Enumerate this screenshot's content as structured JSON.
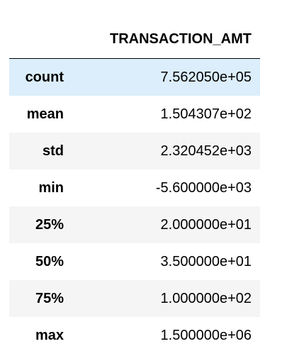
{
  "table": {
    "columns": [
      "",
      "TRANSACTION_AMT"
    ],
    "rows": [
      {
        "label": "count",
        "value": "7.562050e+05"
      },
      {
        "label": "mean",
        "value": "1.504307e+02"
      },
      {
        "label": "std",
        "value": "2.320452e+03"
      },
      {
        "label": "min",
        "value": "-5.600000e+03"
      },
      {
        "label": "25%",
        "value": "2.000000e+01"
      },
      {
        "label": "50%",
        "value": "3.500000e+01"
      },
      {
        "label": "75%",
        "value": "1.000000e+02"
      },
      {
        "label": "max",
        "value": "1.500000e+06"
      }
    ],
    "highlighted_row": "count",
    "colors": {
      "highlight": "#dceefb",
      "stripe": "#f5f5f5",
      "background": "#ffffff",
      "text": "#000000"
    }
  }
}
